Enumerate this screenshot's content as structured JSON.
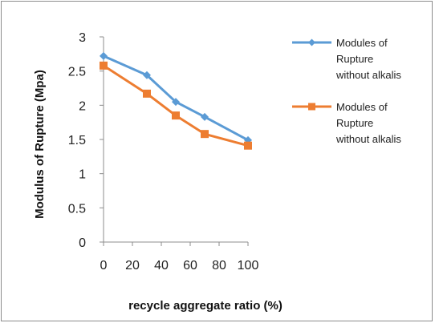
{
  "chart_data": {
    "type": "line",
    "title": "",
    "xlabel": "recycle aggregate ratio (%)",
    "ylabel": "Modulus of Rupture (Mpa)",
    "xlim": [
      0,
      100
    ],
    "ylim": [
      0,
      3
    ],
    "x_ticks": [
      "0",
      "20",
      "40",
      "60",
      "80",
      "100"
    ],
    "y_ticks": [
      "0",
      "0.5",
      "1",
      "1.5",
      "2",
      "2.5",
      "3"
    ],
    "grid": false,
    "legend_position": "right",
    "series": [
      {
        "name_lines": [
          "Modules of",
          "Rupture",
          "without alkalis"
        ],
        "color": "#5b9bd5",
        "marker": "diamond",
        "x": [
          0,
          30,
          50,
          70,
          100
        ],
        "y": [
          2.72,
          2.44,
          2.05,
          1.83,
          1.49
        ]
      },
      {
        "name_lines": [
          "Modules of",
          "Rupture",
          "without alkalis"
        ],
        "color": "#ed7d31",
        "marker": "square",
        "x": [
          0,
          30,
          50,
          70,
          100
        ],
        "y": [
          2.58,
          2.17,
          1.85,
          1.58,
          1.41
        ]
      }
    ]
  }
}
